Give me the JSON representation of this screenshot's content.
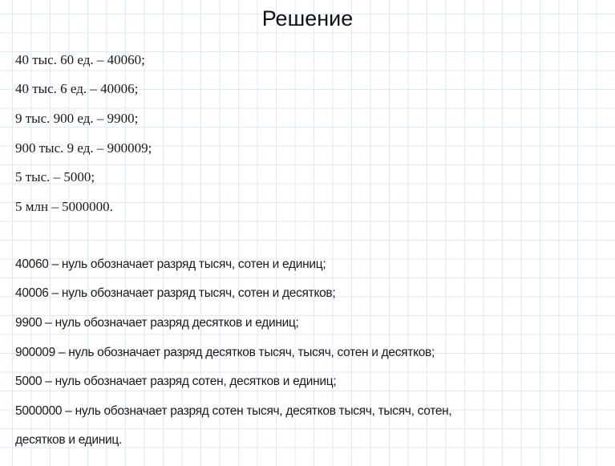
{
  "title": "Решение",
  "block1": [
    "40 тыс. 60 ед. – 40060;",
    "40 тыс. 6 ед. – 40006;",
    "9 тыс. 900 ед. – 9900;",
    "900 тыс. 9 ед. – 900009;",
    "5 тыс. – 5000;",
    "5 млн – 5000000."
  ],
  "block2": [
    "40060 – нуль обозначает разряд тысяч, сотен и единиц;",
    "40006 – нуль обозначает разряд тысяч, сотен и десятков;",
    "9900 – нуль обозначает разряд десятков и единиц;",
    "900009 – нуль обозначает разряд десятков тысяч, тысяч, сотен и десятков;",
    "5000 – нуль обозначает разряд сотен, десятков и единиц;",
    "5000000 – нуль обозначает разряд сотен тысяч, десятков тысяч, тысяч, сотен,",
    "десятков и единиц."
  ]
}
